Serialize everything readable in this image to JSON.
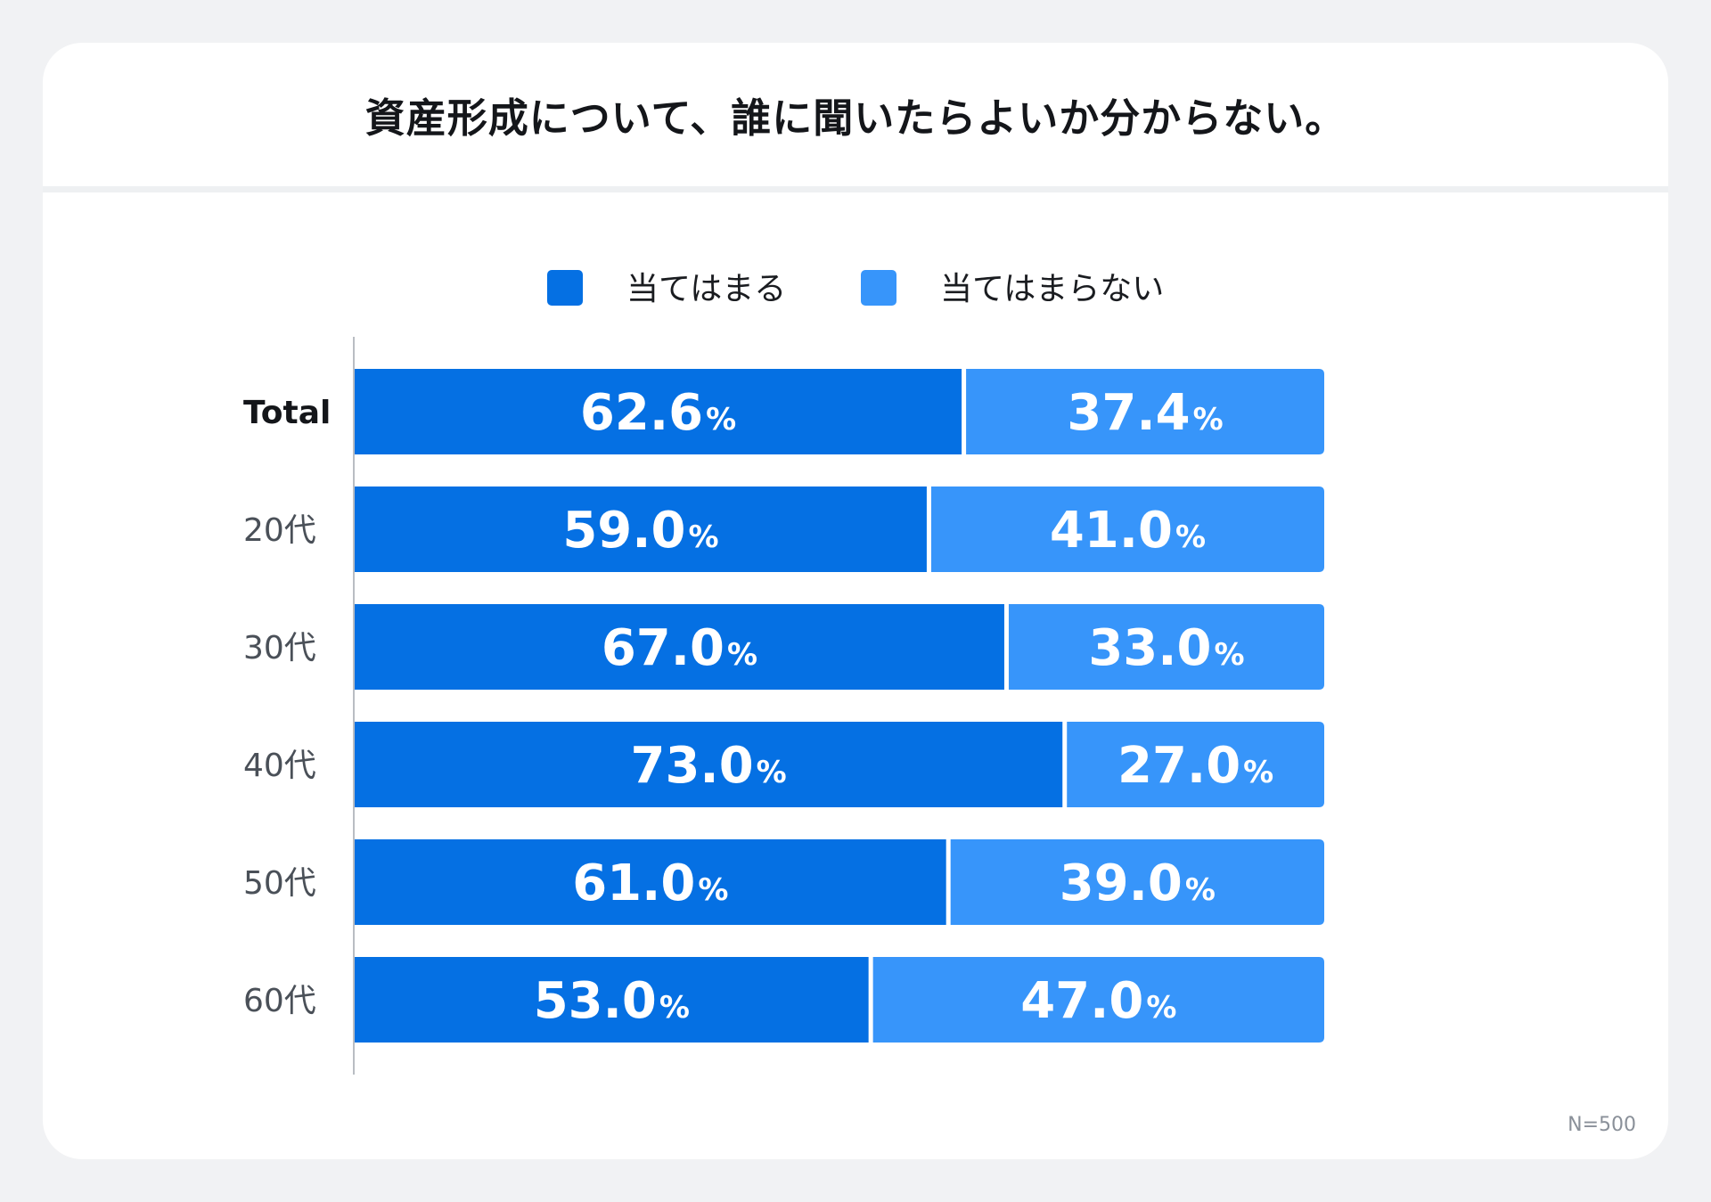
{
  "chart_data": {
    "type": "bar",
    "orientation": "horizontal-stacked-100",
    "title": "資産形成について、誰に聞いたらよいか分からない。",
    "categories": [
      "Total",
      "20代",
      "30代",
      "40代",
      "50代",
      "60代"
    ],
    "series": [
      {
        "name": "当てはまる",
        "color": "#0570e3",
        "values": [
          62.6,
          59.0,
          67.0,
          73.0,
          61.0,
          53.0
        ]
      },
      {
        "name": "当てはまらない",
        "color": "#3795fa",
        "values": [
          37.4,
          41.0,
          33.0,
          27.0,
          39.0,
          47.0
        ]
      }
    ],
    "value_labels": [
      [
        "62.6",
        "59.0",
        "67.0",
        "73.0",
        "61.0",
        "53.0"
      ],
      [
        "37.4",
        "41.0",
        "33.0",
        "27.0",
        "39.0",
        "47.0"
      ]
    ],
    "value_suffix": "%",
    "xlim": [
      0,
      100
    ],
    "legend_position": "top-center",
    "grid": false,
    "note": "N=500"
  }
}
